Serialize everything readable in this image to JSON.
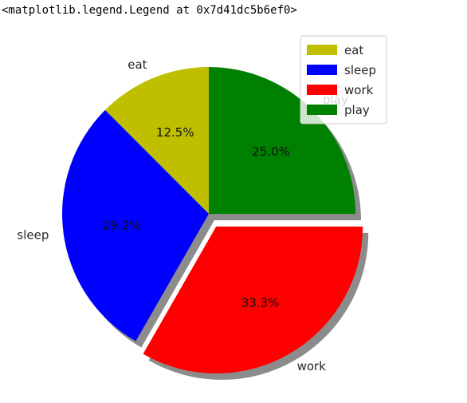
{
  "output": {
    "repr_text": "<matplotlib.legend.Legend at 0x7d41dc5b6ef0>"
  },
  "chart_data": {
    "type": "pie",
    "title": "",
    "labels": [
      "eat",
      "sleep",
      "work",
      "play"
    ],
    "values": [
      12.5,
      29.2,
      33.3,
      25.0
    ],
    "percent_labels": [
      "12.5%",
      "29.2%",
      "33.3%",
      "25.0%"
    ],
    "colors": [
      "#bfbf00",
      "#0000ff",
      "#ff0000",
      "#008000"
    ],
    "explode": [
      0,
      0,
      0.1,
      0
    ],
    "start_angle_deg": 90,
    "shadow": true,
    "legend": {
      "placement": "top-right",
      "entries": [
        "eat",
        "sleep",
        "work",
        "play"
      ]
    }
  }
}
